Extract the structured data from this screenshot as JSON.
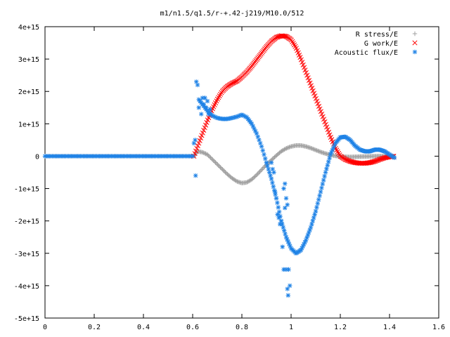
{
  "chart_data": {
    "type": "scatter",
    "title": "m1/n1.5/q1.5/r-+.42-j219/M10.0/512",
    "xlim": [
      0,
      1.6
    ],
    "ylim": [
      -5000000000000000.0,
      4000000000000000.0
    ],
    "x_ticks": [
      0,
      0.2,
      0.4,
      0.6,
      0.8,
      1,
      1.2,
      1.4,
      1.6
    ],
    "x_tick_labels": [
      "0",
      "0.2",
      "0.4",
      "0.6",
      "0.8",
      "1",
      "1.2",
      "1.4",
      "1.6"
    ],
    "y_ticks": [
      4000000000000000.0,
      3000000000000000.0,
      2000000000000000.0,
      1000000000000000.0,
      0,
      -1000000000000000.0,
      -2000000000000000.0,
      -3000000000000000.0,
      -4000000000000000.0,
      -5000000000000000.0
    ],
    "y_tick_labels": [
      "4e+15",
      "3e+15",
      "2e+15",
      "1e+15",
      "0",
      "-1e+15",
      "-2e+15",
      "-3e+15",
      "-4e+15",
      "-5e+15"
    ],
    "grid": false,
    "legend_position": "top-right",
    "series": [
      {
        "name": "R stress/E",
        "marker": "+",
        "color": "#a0a0a0",
        "segments": [
          {
            "x": [
              0,
              0.605
            ],
            "y": [
              0,
              0
            ],
            "step": 0.006
          },
          {
            "x": [
              0.605,
              0.62,
              0.64,
              0.66,
              0.68,
              0.7,
              0.72,
              0.74,
              0.76,
              0.78,
              0.8,
              0.82,
              0.84,
              0.86,
              0.88,
              0.9,
              0.92,
              0.94,
              0.96,
              0.98,
              1.0,
              1.02,
              1.04,
              1.06,
              1.08,
              1.1,
              1.12,
              1.14,
              1.16,
              1.18,
              1.2,
              1.22,
              1.24,
              1.26,
              1.28,
              1.3,
              1.32,
              1.34,
              1.36,
              1.38,
              1.4,
              1.42
            ],
            "y": [
              0,
              150000000000000.0,
              120000000000000.0,
              50000000000000.0,
              -100000000000000.0,
              -250000000000000.0,
              -400000000000000.0,
              -550000000000000.0,
              -680000000000000.0,
              -780000000000000.0,
              -830000000000000.0,
              -810000000000000.0,
              -720000000000000.0,
              -580000000000000.0,
              -420000000000000.0,
              -260000000000000.0,
              -120000000000000.0,
              20000000000000.0,
              150000000000000.0,
              240000000000000.0,
              300000000000000.0,
              330000000000000.0,
              330000000000000.0,
              300000000000000.0,
              250000000000000.0,
              190000000000000.0,
              130000000000000.0,
              80000000000000.0,
              40000000000000.0,
              10000000000000.0,
              -10000000000000.0,
              -20000000000000.0,
              -25000000000000.0,
              -20000000000000.0,
              -15000000000000.0,
              -10000000000000.0,
              -5000000000000.0,
              0,
              2000000000000.0,
              2000000000000.0,
              0,
              0
            ],
            "step": 0.004
          }
        ]
      },
      {
        "name": "G work/E",
        "marker": "x",
        "color": "#ff0000",
        "segments": [
          {
            "x": [
              0.605,
              0.62,
              0.64,
              0.66,
              0.68,
              0.7,
              0.72,
              0.74,
              0.76,
              0.78,
              0.8,
              0.82,
              0.84,
              0.86,
              0.88,
              0.9,
              0.92,
              0.94,
              0.96,
              0.98,
              1.0,
              1.02,
              1.04,
              1.06,
              1.08,
              1.1,
              1.12,
              1.14,
              1.16,
              1.18,
              1.2,
              1.22,
              1.24,
              1.26,
              1.28,
              1.3,
              1.32,
              1.34,
              1.36,
              1.38,
              1.4,
              1.42
            ],
            "y": [
              0,
              300000000000000.0,
              700000000000000.0,
              1100000000000000.0,
              1450000000000000.0,
              1750000000000000.0,
              2000000000000000.0,
              2150000000000000.0,
              2250000000000000.0,
              2320000000000000.0,
              2450000000000000.0,
              2600000000000000.0,
              2780000000000000.0,
              2980000000000000.0,
              3180000000000000.0,
              3380000000000000.0,
              3550000000000000.0,
              3670000000000000.0,
              3720000000000000.0,
              3700000000000000.0,
              3600000000000000.0,
              3350000000000000.0,
              3000000000000000.0,
              2600000000000000.0,
              2200000000000000.0,
              1800000000000000.0,
              1400000000000000.0,
              1000000000000000.0,
              600000000000000.0,
              250000000000000.0,
              0,
              -100000000000000.0,
              -160000000000000.0,
              -200000000000000.0,
              -220000000000000.0,
              -220000000000000.0,
              -200000000000000.0,
              -160000000000000.0,
              -100000000000000.0,
              -50000000000000.0,
              -20000000000000.0,
              0
            ],
            "step": 0.004
          }
        ]
      },
      {
        "name": "Acoustic flux/E",
        "marker": "*",
        "color": "#1e82e6",
        "segments": [
          {
            "x": [
              0,
              0.605
            ],
            "y": [
              0,
              0
            ],
            "step": 0.006
          },
          {
            "x": [
              0.625,
              0.64,
              0.66,
              0.68,
              0.7,
              0.72,
              0.74,
              0.76,
              0.78,
              0.8,
              0.82,
              0.84,
              0.86,
              0.88,
              0.9
            ],
            "y": [
              1750000000000000.0,
              1600000000000000.0,
              1400000000000000.0,
              1250000000000000.0,
              1180000000000000.0,
              1150000000000000.0,
              1150000000000000.0,
              1180000000000000.0,
              1220000000000000.0,
              1280000000000000.0,
              1200000000000000.0,
              1000000000000000.0,
              700000000000000.0,
              300000000000000.0,
              -200000000000000.0
            ],
            "step": 0.005
          },
          {
            "x": [
              0.9,
              0.92,
              0.94,
              0.96,
              0.98,
              1.0,
              1.02,
              1.04,
              1.06,
              1.08,
              1.1,
              1.12,
              1.14,
              1.16,
              1.18,
              1.2,
              1.22,
              1.24,
              1.26,
              1.28,
              1.3,
              1.32,
              1.34,
              1.36,
              1.38,
              1.4,
              1.42
            ],
            "y": [
              -200000000000000.0,
              -700000000000000.0,
              -1300000000000000.0,
              -2000000000000000.0,
              -2500000000000000.0,
              -2850000000000000.0,
              -3000000000000000.0,
              -2900000000000000.0,
              -2600000000000000.0,
              -2200000000000000.0,
              -1700000000000000.0,
              -1100000000000000.0,
              -500000000000000.0,
              50000000000000.0,
              400000000000000.0,
              580000000000000.0,
              600000000000000.0,
              500000000000000.0,
              320000000000000.0,
              200000000000000.0,
              150000000000000.0,
              150000000000000.0,
              200000000000000.0,
              200000000000000.0,
              150000000000000.0,
              50000000000000.0,
              -50000000000000.0
            ],
            "step": 0.004
          }
        ],
        "scatter_points": [
          [
            0.605,
            400000000000000.0
          ],
          [
            0.61,
            500000000000000.0
          ],
          [
            0.612,
            -600000000000000.0
          ],
          [
            0.615,
            2300000000000000.0
          ],
          [
            0.62,
            2200000000000000.0
          ],
          [
            0.625,
            1500000000000000.0
          ],
          [
            0.63,
            1700000000000000.0
          ],
          [
            0.635,
            1300000000000000.0
          ],
          [
            0.64,
            1800000000000000.0
          ],
          [
            0.645,
            1600000000000000.0
          ],
          [
            0.65,
            1800000000000000.0
          ],
          [
            0.655,
            1500000000000000.0
          ],
          [
            0.66,
            1700000000000000.0
          ],
          [
            0.665,
            1300000000000000.0
          ],
          [
            0.67,
            1450000000000000.0
          ],
          [
            0.92,
            -200000000000000.0
          ],
          [
            0.925,
            -400000000000000.0
          ],
          [
            0.93,
            -500000000000000.0
          ],
          [
            0.935,
            -1100000000000000.0
          ],
          [
            0.94,
            -1300000000000000.0
          ],
          [
            0.945,
            -1800000000000000.0
          ],
          [
            0.95,
            -1900000000000000.0
          ],
          [
            0.955,
            -2100000000000000.0
          ],
          [
            0.96,
            -2000000000000000.0
          ],
          [
            0.965,
            -2800000000000000.0
          ],
          [
            0.97,
            -1000000000000000.0
          ],
          [
            0.975,
            -850000000000000.0
          ],
          [
            0.98,
            -3500000000000000.0
          ],
          [
            0.985,
            -4100000000000000.0
          ],
          [
            0.988,
            -4300000000000000.0
          ],
          [
            0.99,
            -3500000000000000.0
          ],
          [
            0.995,
            -4000000000000000.0
          ],
          [
            0.975,
            -1600000000000000.0
          ],
          [
            0.98,
            -1300000000000000.0
          ],
          [
            0.985,
            -1500000000000000.0
          ],
          [
            0.97,
            -3500000000000000.0
          ]
        ]
      }
    ]
  }
}
